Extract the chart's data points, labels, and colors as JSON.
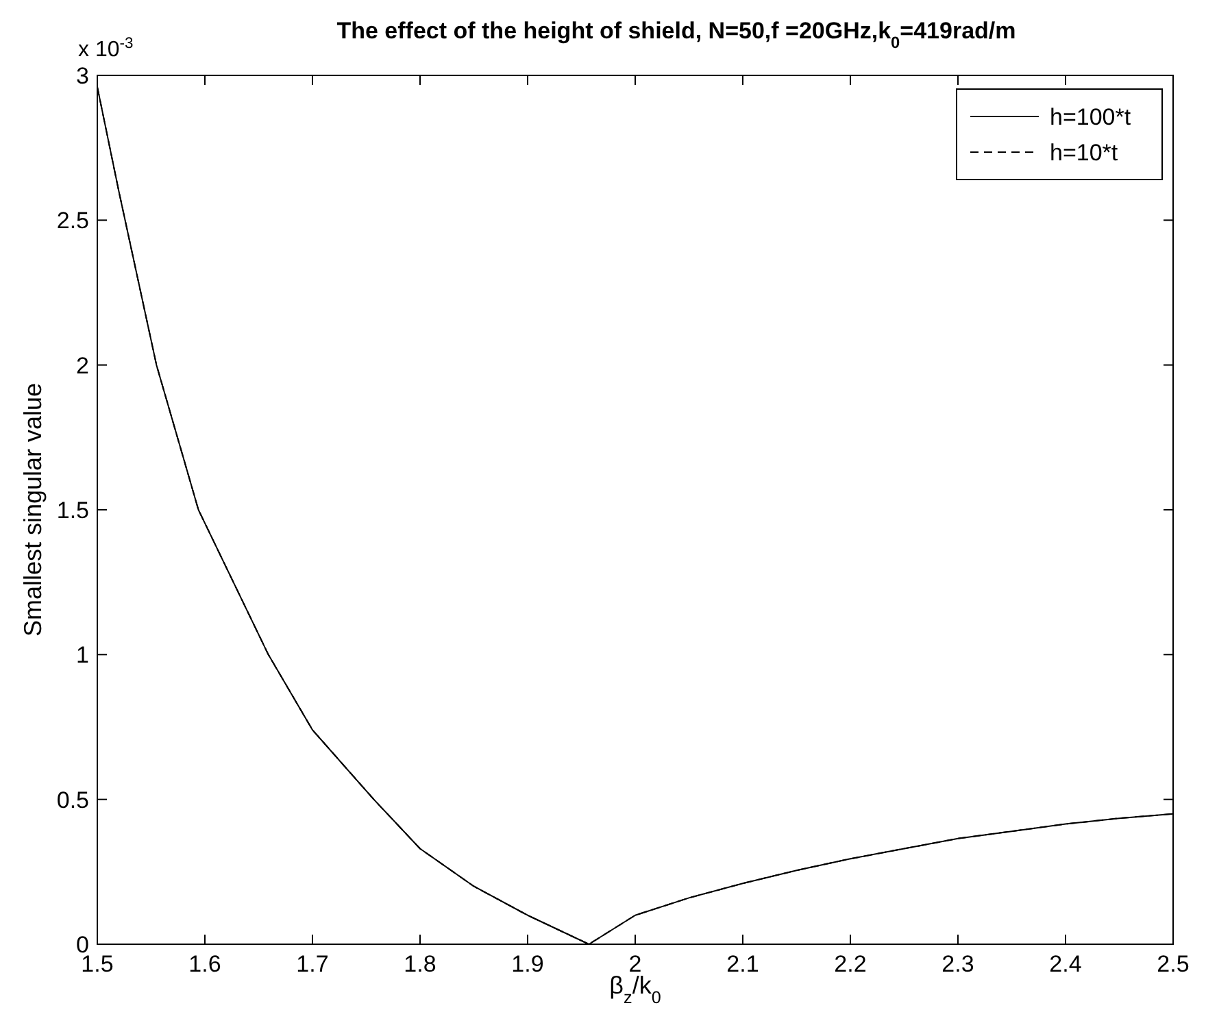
{
  "chart_data": {
    "type": "line",
    "title": "The effect of the height of shield, N=50,f =20GHz,k$_{0}$=419rad/m",
    "xlabel": "β$_{z}$/k$_{0}$",
    "ylabel": "Smallest singular value",
    "annotations": [
      "x 10$^{-3}$"
    ],
    "x": [
      1.5,
      1.52,
      1.555,
      1.594,
      1.659,
      1.7,
      1.757,
      1.8,
      1.85,
      1.9,
      1.957,
      2.0,
      2.05,
      2.1,
      2.15,
      2.2,
      2.25,
      2.3,
      2.35,
      2.4,
      2.45,
      2.5
    ],
    "series": [
      {
        "name": "h=100*t",
        "color": "#000000",
        "line_style": "solid",
        "values": [
          2.96,
          2.6,
          2.0,
          1.5,
          1.0,
          0.74,
          0.5,
          0.33,
          0.2,
          0.1,
          0,
          0.1,
          0.16,
          0.21,
          0.255,
          0.295,
          0.33,
          0.365,
          0.39,
          0.415,
          0.435,
          0.45
        ]
      },
      {
        "name": "h=10*t",
        "color": "#000000",
        "line_style": "dashed",
        "values": [
          2.96,
          2.6,
          2.0,
          1.5,
          1.0,
          0.74,
          0.5,
          0.33,
          0.2,
          0.1,
          0,
          0.1,
          0.16,
          0.21,
          0.255,
          0.295,
          0.33,
          0.365,
          0.39,
          0.415,
          0.435,
          0.45
        ]
      }
    ],
    "xlim": [
      1.5,
      2.5
    ],
    "xticks": [
      1.5,
      1.6,
      1.7,
      1.8,
      1.9,
      2,
      2.1,
      2.2,
      2.3,
      2.4,
      2.5
    ],
    "ylim": [
      0,
      3
    ],
    "yticks": [
      0,
      0.5,
      1,
      1.5,
      2,
      2.5,
      3
    ],
    "grid": false,
    "legend": "top right"
  }
}
